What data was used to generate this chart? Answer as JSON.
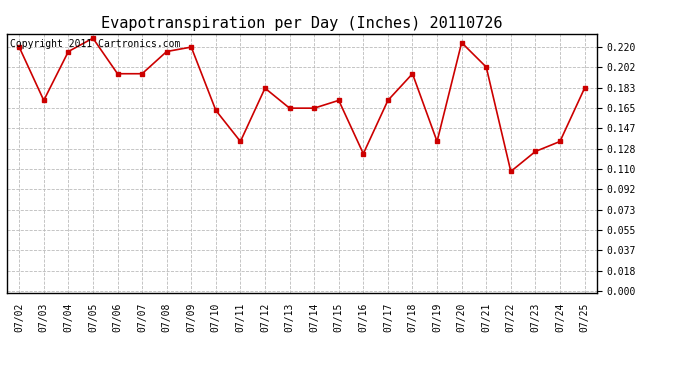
{
  "title": "Evapotranspiration per Day (Inches) 20110726",
  "copyright": "Copyright 2011 Cartronics.com",
  "dates": [
    "07/02",
    "07/03",
    "07/04",
    "07/05",
    "07/06",
    "07/07",
    "07/08",
    "07/09",
    "07/10",
    "07/11",
    "07/12",
    "07/13",
    "07/14",
    "07/15",
    "07/16",
    "07/17",
    "07/18",
    "07/19",
    "07/20",
    "07/21",
    "07/22",
    "07/23",
    "07/24",
    "07/25"
  ],
  "values": [
    0.22,
    0.172,
    0.216,
    0.228,
    0.196,
    0.196,
    0.216,
    0.22,
    0.163,
    0.135,
    0.183,
    0.165,
    0.165,
    0.172,
    0.124,
    0.172,
    0.196,
    0.135,
    0.224,
    0.202,
    0.108,
    0.126,
    0.135,
    0.183
  ],
  "line_color": "#cc0000",
  "marker": "s",
  "marker_size": 3,
  "background_color": "#ffffff",
  "grid_color": "#bbbbbb",
  "yticks": [
    0.0,
    0.018,
    0.037,
    0.055,
    0.073,
    0.092,
    0.11,
    0.128,
    0.147,
    0.165,
    0.183,
    0.202,
    0.22
  ],
  "title_fontsize": 11,
  "tick_fontsize": 7,
  "copyright_fontsize": 7
}
